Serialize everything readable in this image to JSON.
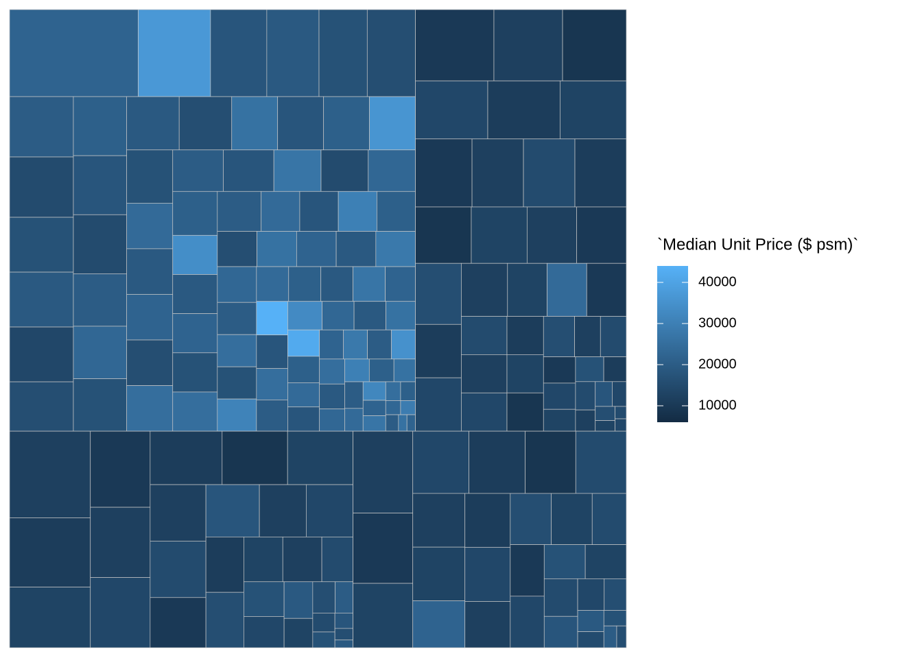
{
  "chart_data": {
    "type": "treemap",
    "legend_title": "`Median Unit Price ($ psm)`",
    "colorbar": {
      "lim": [
        6000,
        44000
      ],
      "ticks": [
        10000,
        20000,
        30000,
        40000
      ],
      "low_color": "#132B43",
      "high_color": "#56B1F7"
    },
    "tile_border": "#c8c8c8",
    "groups": [
      {
        "sizes": [
          16,
          9,
          7,
          6.5,
          6,
          6,
          5.5,
          5.5,
          5,
          5,
          5,
          4.5,
          4.5,
          4.5,
          4.5,
          4,
          4,
          4,
          4,
          4,
          3.5,
          3.5,
          3.5,
          3.5,
          3.5,
          3,
          3,
          3,
          3,
          3,
          3,
          3,
          2.8,
          2.8,
          2.8,
          2.8,
          2.5,
          2.5,
          2.5,
          2.5,
          2.5,
          2.5,
          2.2,
          2.2,
          2.2,
          2.2,
          2,
          2,
          2,
          2,
          2,
          2,
          1.8,
          1.8,
          1.8,
          1.8,
          1.6,
          1.6,
          1.6,
          1.6,
          1.5,
          1.5,
          1.5,
          1.4,
          1.4,
          1.4,
          1.3,
          1.3,
          1.2,
          1.2,
          1.2,
          1.1,
          1.1,
          1,
          1,
          1,
          1,
          0.9,
          0.9,
          0.8,
          0.8,
          0.8,
          0.7,
          0.7,
          0.6,
          0.6,
          0.5,
          0.5,
          0.4,
          0.4,
          0.3,
          0.3,
          0.3,
          0.2,
          0.2
        ],
        "values": [
          22000,
          37000,
          18000,
          19000,
          17000,
          16000,
          20000,
          15000,
          17000,
          19000,
          14000,
          16000,
          21000,
          18000,
          15000,
          20000,
          23000,
          17000,
          19000,
          16000,
          26000,
          18000,
          21000,
          36000,
          17000,
          24000,
          19000,
          22000,
          16000,
          25000,
          20000,
          18000,
          27000,
          15000,
          23000,
          21000,
          34000,
          19000,
          22000,
          17000,
          25000,
          20000,
          24000,
          18000,
          30000,
          21000,
          16000,
          26000,
          22000,
          19000,
          28000,
          23000,
          20000,
          25000,
          17000,
          31000,
          24000,
          21000,
          19000,
          27000,
          22000,
          44000,
          18000,
          25000,
          20000,
          33000,
          23000,
          19000,
          26000,
          42000,
          21000,
          24000,
          18000,
          22000,
          28000,
          20000,
          35000,
          25000,
          19000,
          23000,
          30000,
          21000,
          26000,
          20000,
          24000,
          32000,
          22000,
          27000,
          25000,
          21000,
          23000,
          29000,
          20000,
          26000,
          22000
        ]
      },
      {
        "sizes": [
          8,
          7,
          6.5,
          6,
          6,
          5.5,
          5.5,
          5,
          5,
          5,
          4.5,
          4.5,
          4,
          4,
          4,
          3.5,
          3.5,
          3.5,
          3,
          3,
          3,
          2.5,
          2.5,
          2.5,
          2,
          2,
          2,
          1.8,
          1.5,
          1.5,
          1.2,
          1.2,
          1,
          1,
          0.8,
          0.8,
          0.6,
          0.6,
          0.5,
          0.4,
          0.3,
          0.2,
          0.2
        ],
        "values": [
          10000,
          12000,
          9000,
          14000,
          11000,
          13000,
          10000,
          12000,
          15000,
          11000,
          9000,
          13000,
          12000,
          10000,
          16000,
          11000,
          14000,
          12000,
          13000,
          24000,
          10000,
          15000,
          12000,
          14000,
          11000,
          13000,
          9000,
          16000,
          12000,
          15000,
          10000,
          14000,
          13000,
          17000,
          11000,
          15000,
          12000,
          18000,
          14000,
          16000,
          13000,
          15000,
          14000
        ]
      },
      {
        "sizes": [
          10,
          8,
          7,
          6.5,
          6,
          6,
          5.5,
          5,
          5,
          4.5,
          4.5,
          4,
          4,
          3.5,
          3.5,
          3,
          3,
          2.5,
          2.5,
          2,
          2,
          1.8,
          1.5,
          1.2,
          1,
          0.8,
          0.6,
          0.5,
          0.4,
          0.3,
          0.2
        ],
        "values": [
          12000,
          11000,
          13000,
          10000,
          12000,
          14000,
          11000,
          9000,
          13000,
          12000,
          15000,
          10000,
          18000,
          12000,
          14000,
          11000,
          16000,
          13000,
          12000,
          15000,
          17000,
          14000,
          19000,
          13000,
          16000,
          20000,
          15000,
          17000,
          18000,
          16000,
          19000
        ]
      },
      {
        "sizes": [
          7,
          6,
          5.5,
          5,
          5,
          4.5,
          4.5,
          4,
          4,
          3.5,
          3.5,
          3.5,
          3,
          3,
          3,
          2.5,
          2.5,
          2.5,
          2,
          2,
          1.8,
          1.5,
          1.2,
          1,
          0.8,
          0.6,
          0.5,
          0.4,
          0.3
        ],
        "values": [
          12000,
          10000,
          13000,
          14000,
          11000,
          9000,
          15000,
          12000,
          13000,
          22000,
          11000,
          14000,
          12000,
          16000,
          13000,
          15000,
          10000,
          14000,
          17000,
          13000,
          15000,
          18000,
          14000,
          16000,
          19000,
          15000,
          17000,
          20000,
          16000
        ]
      }
    ]
  }
}
